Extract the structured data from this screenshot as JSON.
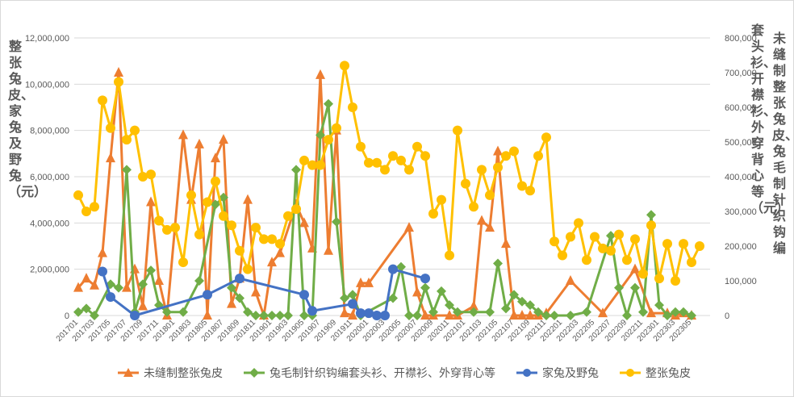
{
  "chart_data": {
    "type": "line",
    "title": "",
    "ylabel_left": "整张兔皮、家兔及野兔（元）",
    "ylabel_right_1": "套头衫、开襟衫、外穿背心等（元）",
    "ylabel_right_2": "未缝制整张兔皮、兔毛制针织钩编",
    "left_ticks": [
      "0",
      "2,000,000",
      "4,000,000",
      "6,000,000",
      "8,000,000",
      "10,000,000",
      "12,000,000"
    ],
    "right_ticks": [
      "0",
      "100,000",
      "200,000",
      "300,000",
      "400,000",
      "500,000",
      "600,000",
      "700,000",
      "800,000"
    ],
    "ylim_left": [
      0,
      12000000
    ],
    "ylim_right": [
      0,
      800000
    ],
    "x_tick_labels": [
      "201701",
      "201703",
      "201705",
      "201707",
      "201709",
      "201711",
      "201801",
      "201803",
      "201805",
      "201807",
      "201809",
      "201811",
      "201901",
      "201903",
      "201905",
      "201907",
      "201909",
      "201911",
      "202001",
      "202003",
      "202005",
      "202007",
      "202009",
      "202011",
      "202101",
      "202103",
      "202105",
      "202107",
      "202109",
      "202111",
      "202201",
      "202203",
      "202205",
      "202207",
      "202209",
      "202211",
      "202301",
      "202303",
      "202305"
    ],
    "legend_position": "bottom",
    "grid": true,
    "series": [
      {
        "name": "未缝制整张兔皮",
        "axis": "left",
        "color": "#ED7D31",
        "marker": "triangle",
        "points": [
          [
            1,
            1200000
          ],
          [
            2,
            1600000
          ],
          [
            3,
            1300000
          ],
          [
            4,
            2700000
          ],
          [
            5,
            6800000
          ],
          [
            6,
            10500000
          ],
          [
            7,
            1200000
          ],
          [
            8,
            2000000
          ],
          [
            9,
            400000
          ],
          [
            10,
            4900000
          ],
          [
            11,
            1500000
          ],
          [
            12,
            0
          ],
          [
            14,
            7800000
          ],
          [
            15,
            5000000
          ],
          [
            16,
            7400000
          ],
          [
            17,
            0
          ],
          [
            18,
            6800000
          ],
          [
            19,
            7600000
          ],
          [
            20,
            500000
          ],
          [
            21,
            1600000
          ],
          [
            22,
            5000000
          ],
          [
            23,
            1000000
          ],
          [
            24,
            0
          ],
          [
            25,
            2300000
          ],
          [
            26,
            2700000
          ],
          [
            28,
            4800000
          ],
          [
            29,
            4000000
          ],
          [
            30,
            2900000
          ],
          [
            31,
            10400000
          ],
          [
            32,
            2800000
          ],
          [
            33,
            8000000
          ],
          [
            34,
            100000
          ],
          [
            35,
            0
          ],
          [
            36,
            1400000
          ],
          [
            37,
            1400000
          ],
          [
            42,
            3800000
          ],
          [
            43,
            1000000
          ],
          [
            44,
            0
          ],
          [
            45,
            0
          ],
          [
            47,
            0
          ],
          [
            48,
            0
          ],
          [
            50,
            400000
          ],
          [
            51,
            4100000
          ],
          [
            52,
            3800000
          ],
          [
            53,
            7100000
          ],
          [
            54,
            3100000
          ],
          [
            55,
            0
          ],
          [
            56,
            0
          ],
          [
            57,
            0
          ],
          [
            58,
            0
          ],
          [
            59,
            100000
          ],
          [
            62,
            1500000
          ],
          [
            66,
            100000
          ],
          [
            70,
            2000000
          ],
          [
            72,
            100000
          ],
          [
            74,
            100000
          ],
          [
            75,
            0
          ],
          [
            76,
            100000
          ],
          [
            77,
            0
          ]
        ]
      },
      {
        "name": "兔毛制针织钩编套头衫、开襟衫、外穿背心等",
        "axis": "right",
        "color": "#70AD47",
        "marker": "diamond",
        "points": [
          [
            1,
            10000
          ],
          [
            2,
            20000
          ],
          [
            3,
            0
          ],
          [
            5,
            90000
          ],
          [
            6,
            80000
          ],
          [
            7,
            420000
          ],
          [
            8,
            10000
          ],
          [
            9,
            90000
          ],
          [
            10,
            130000
          ],
          [
            11,
            30000
          ],
          [
            12,
            10000
          ],
          [
            14,
            10000
          ],
          [
            16,
            100000
          ],
          [
            18,
            320000
          ],
          [
            19,
            340000
          ],
          [
            20,
            80000
          ],
          [
            21,
            50000
          ],
          [
            22,
            10000
          ],
          [
            23,
            0
          ],
          [
            24,
            0
          ],
          [
            25,
            0
          ],
          [
            26,
            0
          ],
          [
            27,
            0
          ],
          [
            28,
            420000
          ],
          [
            29,
            0
          ],
          [
            30,
            0
          ],
          [
            31,
            520000
          ],
          [
            32,
            610000
          ],
          [
            33,
            270000
          ],
          [
            34,
            50000
          ],
          [
            35,
            60000
          ],
          [
            36,
            0
          ],
          [
            40,
            50000
          ],
          [
            41,
            140000
          ],
          [
            42,
            0
          ],
          [
            43,
            0
          ],
          [
            44,
            80000
          ],
          [
            45,
            10000
          ],
          [
            46,
            70000
          ],
          [
            47,
            30000
          ],
          [
            48,
            10000
          ],
          [
            50,
            10000
          ],
          [
            52,
            10000
          ],
          [
            53,
            150000
          ],
          [
            54,
            20000
          ],
          [
            55,
            60000
          ],
          [
            56,
            40000
          ],
          [
            57,
            30000
          ],
          [
            58,
            10000
          ],
          [
            59,
            0
          ],
          [
            60,
            0
          ],
          [
            62,
            0
          ],
          [
            64,
            10000
          ],
          [
            67,
            230000
          ],
          [
            68,
            80000
          ],
          [
            69,
            0
          ],
          [
            70,
            80000
          ],
          [
            71,
            10000
          ],
          [
            72,
            290000
          ],
          [
            73,
            30000
          ],
          [
            74,
            0
          ],
          [
            75,
            10000
          ],
          [
            76,
            10000
          ],
          [
            77,
            0
          ]
        ]
      },
      {
        "name": "家兔及野兔",
        "axis": "left",
        "color": "#4472C4",
        "marker": "circle",
        "points": [
          [
            4,
            1900000
          ],
          [
            5,
            800000
          ],
          [
            8,
            0
          ],
          [
            17,
            900000
          ],
          [
            21,
            1600000
          ],
          [
            29,
            900000
          ],
          [
            30,
            200000
          ],
          [
            35,
            500000
          ],
          [
            36,
            100000
          ],
          [
            37,
            100000
          ],
          [
            38,
            0
          ],
          [
            39,
            0
          ],
          [
            40,
            2000000
          ],
          [
            44,
            1600000
          ]
        ]
      },
      {
        "name": "整张兔皮",
        "axis": "left",
        "color": "#FFC000",
        "marker": "circle",
        "points": [
          [
            1,
            5200000
          ],
          [
            2,
            4500000
          ],
          [
            3,
            4700000
          ],
          [
            4,
            9300000
          ],
          [
            5,
            8100000
          ],
          [
            6,
            10100000
          ],
          [
            7,
            7600000
          ],
          [
            8,
            8000000
          ],
          [
            9,
            6000000
          ],
          [
            10,
            6100000
          ],
          [
            11,
            4100000
          ],
          [
            12,
            3700000
          ],
          [
            13,
            3800000
          ],
          [
            14,
            2300000
          ],
          [
            15,
            5200000
          ],
          [
            16,
            3500000
          ],
          [
            17,
            4900000
          ],
          [
            18,
            5800000
          ],
          [
            19,
            4300000
          ],
          [
            20,
            3900000
          ],
          [
            21,
            2800000
          ],
          [
            22,
            2000000
          ],
          [
            23,
            3800000
          ],
          [
            24,
            3300000
          ],
          [
            25,
            3300000
          ],
          [
            26,
            3100000
          ],
          [
            27,
            4300000
          ],
          [
            28,
            4600000
          ],
          [
            29,
            6700000
          ],
          [
            30,
            6500000
          ],
          [
            31,
            6500000
          ],
          [
            32,
            7600000
          ],
          [
            33,
            8100000
          ],
          [
            34,
            10800000
          ],
          [
            35,
            9000000
          ],
          [
            36,
            7300000
          ],
          [
            37,
            6600000
          ],
          [
            38,
            6600000
          ],
          [
            39,
            6300000
          ],
          [
            40,
            6900000
          ],
          [
            41,
            6700000
          ],
          [
            42,
            6300000
          ],
          [
            43,
            7300000
          ],
          [
            44,
            6900000
          ],
          [
            45,
            4400000
          ],
          [
            46,
            5000000
          ],
          [
            47,
            2600000
          ],
          [
            48,
            8000000
          ],
          [
            49,
            5700000
          ],
          [
            50,
            4700000
          ],
          [
            51,
            6300000
          ],
          [
            52,
            5200000
          ],
          [
            53,
            6400000
          ],
          [
            54,
            6900000
          ],
          [
            55,
            7100000
          ],
          [
            56,
            5600000
          ],
          [
            57,
            5400000
          ],
          [
            58,
            6900000
          ],
          [
            59,
            7700000
          ],
          [
            60,
            3200000
          ],
          [
            61,
            2600000
          ],
          [
            62,
            3400000
          ],
          [
            63,
            4000000
          ],
          [
            64,
            2400000
          ],
          [
            65,
            3400000
          ],
          [
            66,
            2900000
          ],
          [
            67,
            2800000
          ],
          [
            68,
            3500000
          ],
          [
            69,
            2400000
          ],
          [
            70,
            3300000
          ],
          [
            71,
            1800000
          ],
          [
            72,
            3900000
          ],
          [
            73,
            1600000
          ],
          [
            74,
            3100000
          ],
          [
            75,
            1500000
          ],
          [
            76,
            3100000
          ],
          [
            77,
            2300000
          ],
          [
            78,
            3000000
          ]
        ]
      }
    ]
  },
  "legend": {
    "items": [
      {
        "label": "未缝制整张兔皮",
        "color": "#ED7D31"
      },
      {
        "label": "兔毛制针织钩编套头衫、开襟衫、外穿背心等",
        "color": "#70AD47"
      },
      {
        "label": "家兔及野兔",
        "color": "#4472C4"
      },
      {
        "label": "整张兔皮",
        "color": "#FFC000"
      }
    ]
  }
}
